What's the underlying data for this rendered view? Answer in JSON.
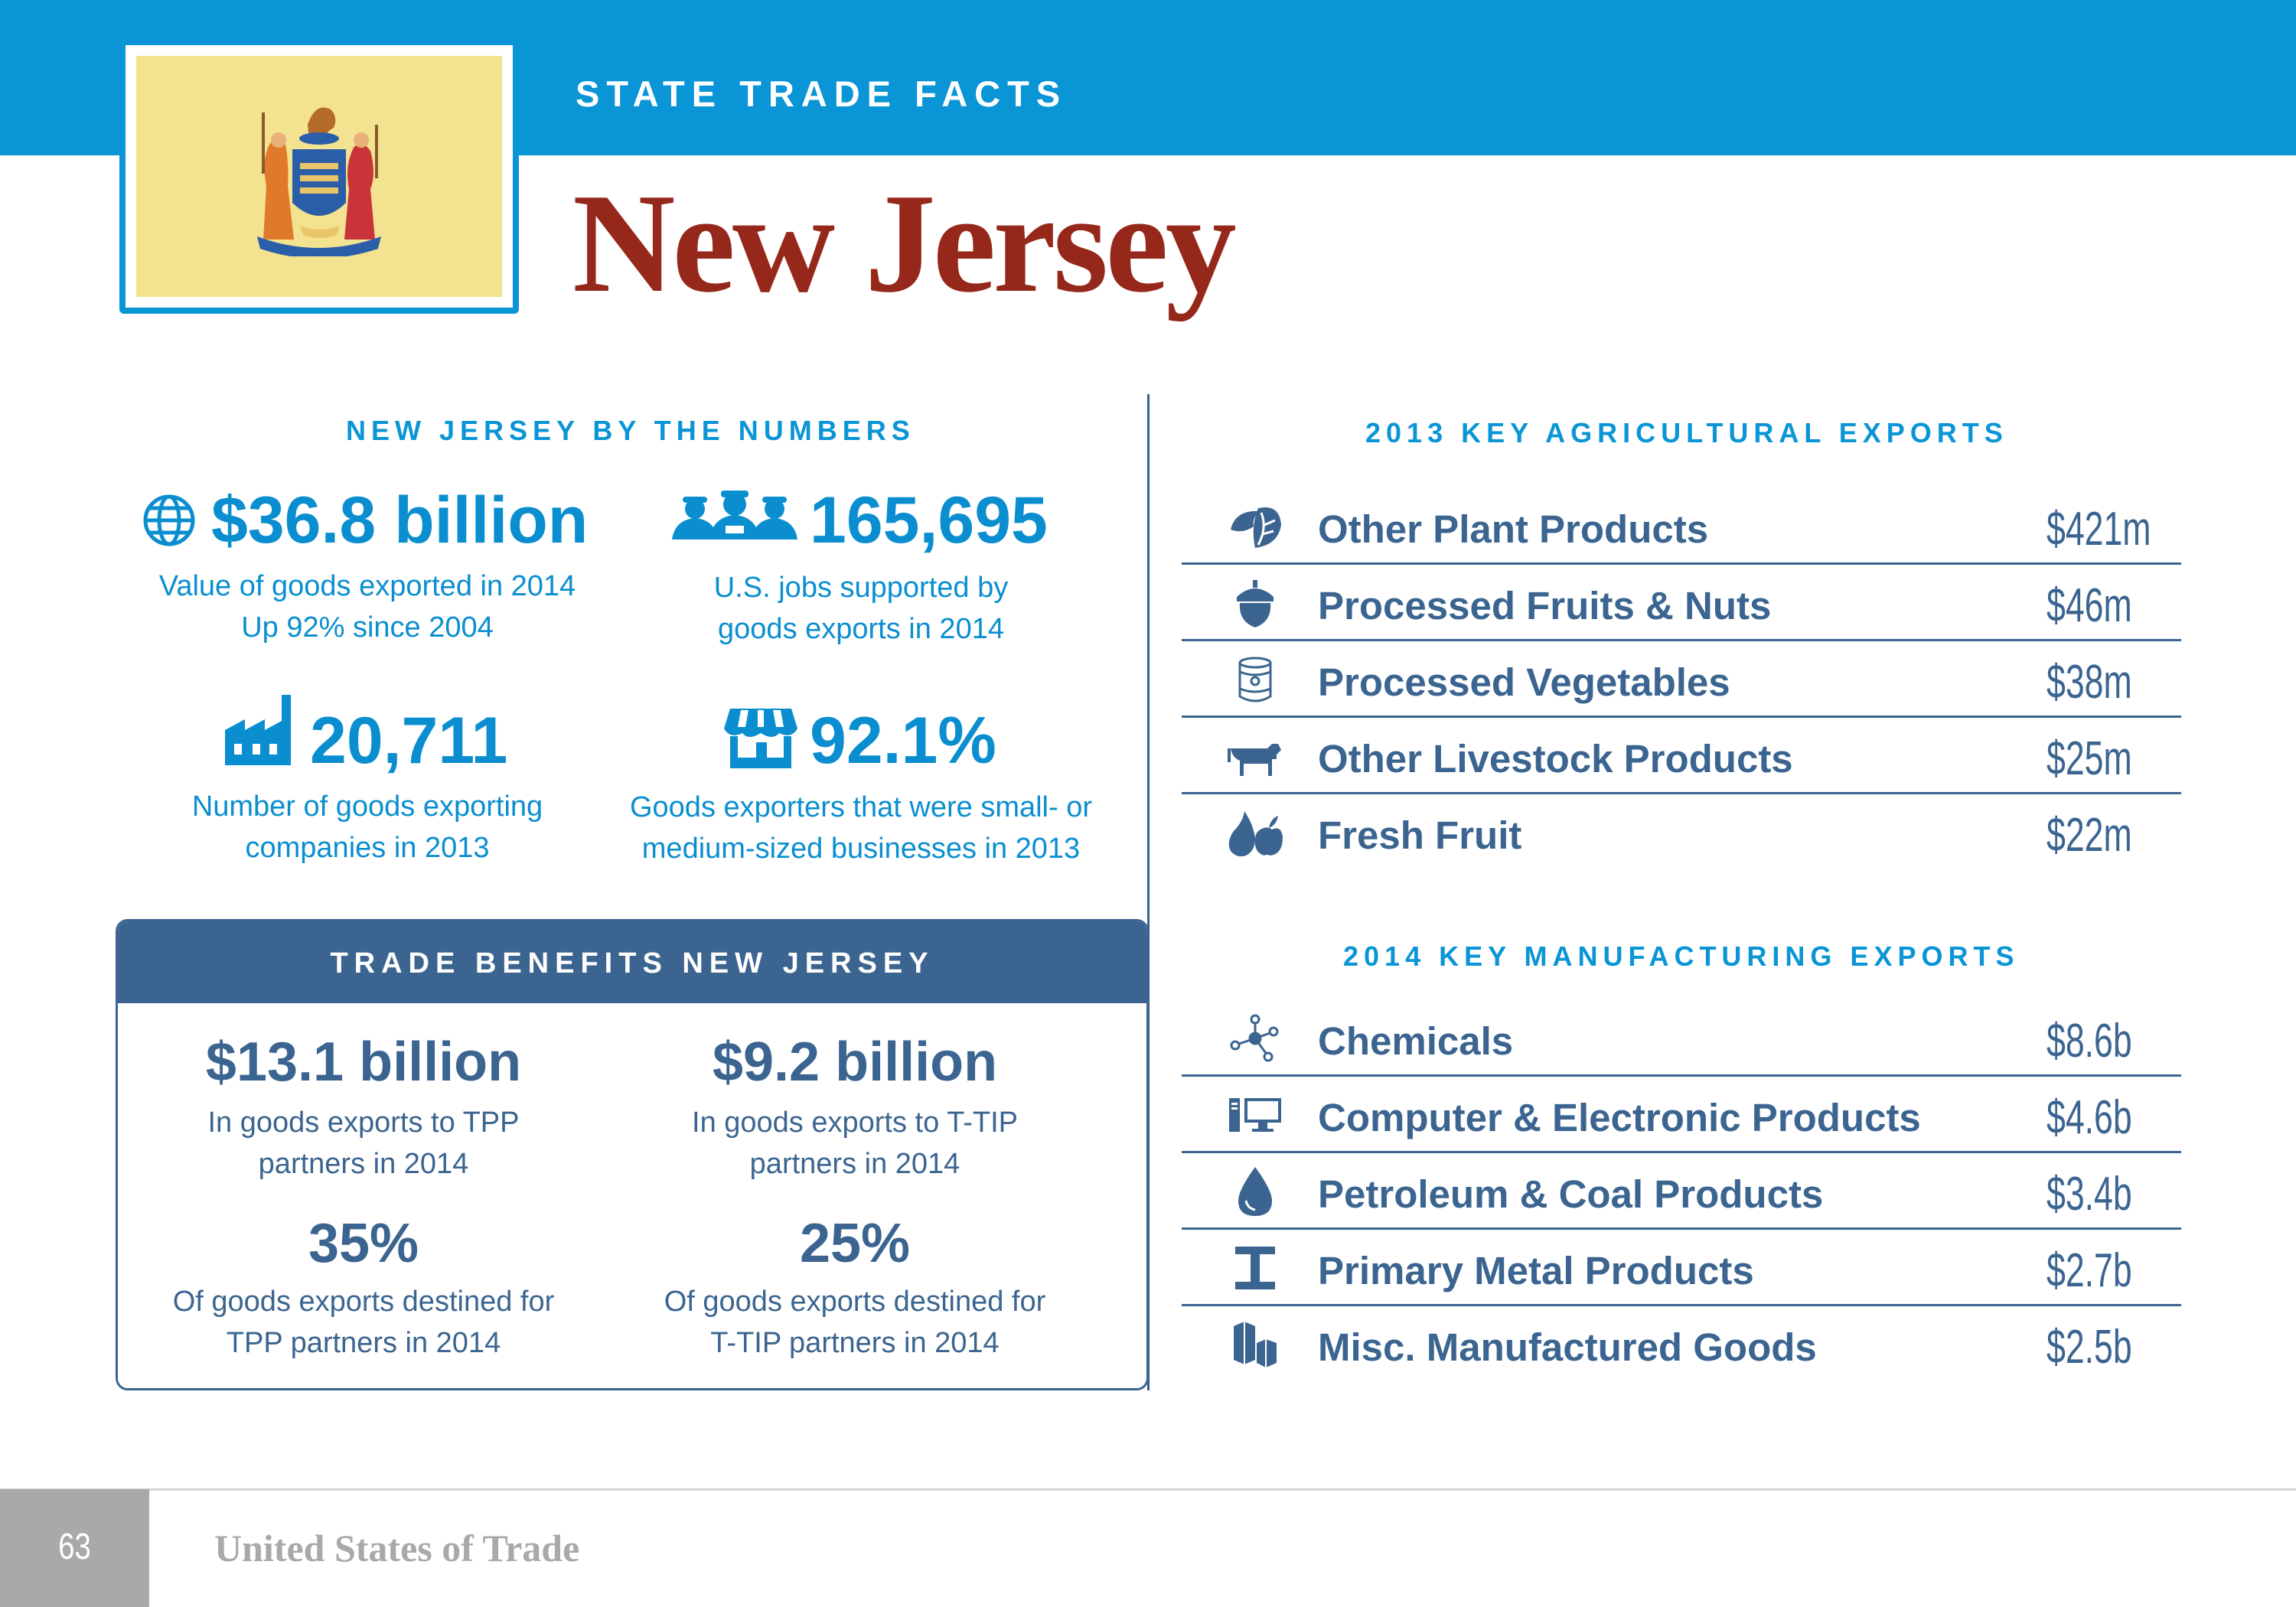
{
  "header": {
    "kicker": "STATE TRADE FACTS",
    "title": "New Jersey",
    "flag_icon": "new-jersey-flag-seal",
    "flag_color": "#f3e28f",
    "accent_color": "#0a95d6"
  },
  "numbers": {
    "heading": "NEW JERSEY BY THE NUMBERS",
    "stats": [
      {
        "icon": "globe-icon",
        "value": "$36.8 billion",
        "desc1": "Value of goods exported in 2014",
        "desc2": "Up 92% since 2004"
      },
      {
        "icon": "workers-icon",
        "value": "165,695",
        "desc1": "U.S. jobs supported by",
        "desc2": "goods exports in 2014"
      },
      {
        "icon": "factory-icon",
        "value": "20,711",
        "desc1": "Number of goods exporting",
        "desc2": "companies in 2013"
      },
      {
        "icon": "storefront-icon",
        "value": "92.1%",
        "desc1": "Goods exporters that were small- or",
        "desc2": "medium-sized businesses in 2013"
      }
    ]
  },
  "benefits": {
    "heading": "TRADE BENEFITS NEW JERSEY",
    "stats": [
      {
        "value": "$13.1 billion",
        "desc1": "In goods exports to TPP",
        "desc2": "partners in 2014"
      },
      {
        "value": "$9.2 billion",
        "desc1": "In goods exports to T-TIP",
        "desc2": "partners in 2014"
      },
      {
        "value": "35%",
        "desc1": "Of goods exports destined for",
        "desc2": "TPP partners in 2014"
      },
      {
        "value": "25%",
        "desc1": "Of goods exports destined for",
        "desc2": "T-TIP partners in 2014"
      }
    ]
  },
  "agriculture": {
    "heading": "2013 KEY AGRICULTURAL EXPORTS",
    "items": [
      {
        "icon": "leaf-icon",
        "label": "Other Plant Products",
        "value": "$421m"
      },
      {
        "icon": "acorn-icon",
        "label": "Processed Fruits & Nuts",
        "value": "$46m"
      },
      {
        "icon": "can-icon",
        "label": "Processed Vegetables",
        "value": "$38m"
      },
      {
        "icon": "cow-icon",
        "label": "Other Livestock Products",
        "value": "$25m"
      },
      {
        "icon": "fruit-icon",
        "label": "Fresh Fruit",
        "value": "$22m"
      }
    ]
  },
  "manufacturing": {
    "heading": "2014 KEY MANUFACTURING EXPORTS",
    "items": [
      {
        "icon": "molecule-icon",
        "label": "Chemicals",
        "value": "$8.6b"
      },
      {
        "icon": "computer-icon",
        "label": "Computer & Electronic Products",
        "value": "$4.6b"
      },
      {
        "icon": "oil-drop-icon",
        "label": "Petroleum & Coal Products",
        "value": "$3.4b"
      },
      {
        "icon": "i-beam-icon",
        "label": "Primary Metal Products",
        "value": "$2.7b"
      },
      {
        "icon": "boxes-icon",
        "label": "Misc. Manufactured Goods",
        "value": "$2.5b"
      }
    ]
  },
  "footer": {
    "page_number": "63",
    "publication": "United States of Trade"
  }
}
